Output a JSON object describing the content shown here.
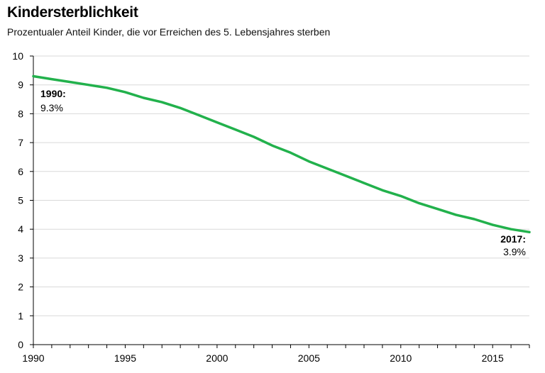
{
  "chart_data": {
    "type": "line",
    "title": "Kindersterblichkeit",
    "subtitle": "Prozentualer Anteil Kinder, die vor Erreichen des 5. Lebensjahres sterben",
    "xlabel": "",
    "ylabel": "",
    "xlim": [
      1990,
      2017
    ],
    "ylim": [
      0,
      10
    ],
    "x_ticks": [
      "1990",
      "1995",
      "2000",
      "2005",
      "2010",
      "2015"
    ],
    "y_ticks": [
      "0",
      "1",
      "2",
      "3",
      "4",
      "5",
      "6",
      "7",
      "8",
      "9",
      "10"
    ],
    "grid": true,
    "color": "#22b14c",
    "series": [
      {
        "x": [
          1990,
          1991,
          1992,
          1993,
          1994,
          1995,
          1996,
          1997,
          1998,
          1999,
          2000,
          2001,
          2002,
          2003,
          2004,
          2005,
          2006,
          2007,
          2008,
          2009,
          2010,
          2011,
          2012,
          2013,
          2014,
          2015,
          2016,
          2017
        ],
        "values": [
          9.3,
          9.2,
          9.1,
          9.0,
          8.9,
          8.75,
          8.55,
          8.4,
          8.2,
          7.95,
          7.7,
          7.45,
          7.2,
          6.9,
          6.65,
          6.35,
          6.1,
          5.85,
          5.6,
          5.35,
          5.15,
          4.9,
          4.7,
          4.5,
          4.35,
          4.15,
          4.0,
          3.9
        ]
      }
    ],
    "annotations": [
      {
        "year": "1990:",
        "value": "9.3%"
      },
      {
        "year": "2017:",
        "value": "3.9%"
      }
    ]
  }
}
